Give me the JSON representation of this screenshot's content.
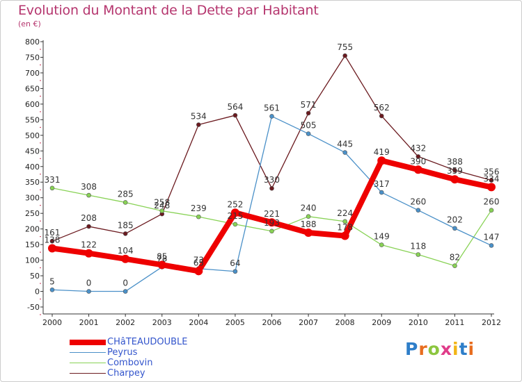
{
  "title": "Evolution du Montant de la Dette par Habitant",
  "unit_label": "(en €)",
  "logo_text": "Proxiti",
  "chart_data": {
    "type": "line",
    "title": "Evolution du Montant de la Dette par Habitant",
    "ylabel": "(en €)",
    "xlabel": "",
    "x": [
      "2000",
      "2001",
      "2002",
      "2003",
      "2004",
      "2005",
      "2006",
      "2007",
      "2008",
      "2009",
      "2010",
      "2011",
      "2012"
    ],
    "ylim": [
      -50,
      800
    ],
    "yticks": [
      -50,
      0,
      50,
      100,
      150,
      200,
      250,
      300,
      350,
      400,
      450,
      500,
      550,
      600,
      650,
      700,
      750,
      800
    ],
    "grid": false,
    "legend_position": "bottom-left",
    "series": [
      {
        "name": "CHâTEAUDOUBLE",
        "color": "#ee0000",
        "values": [
          138,
          122,
          104,
          85,
          65,
          252,
          221,
          188,
          178,
          419,
          390,
          359,
          334
        ]
      },
      {
        "name": "Peyrus",
        "color": "#4a90c8",
        "values": [
          5,
          0,
          0,
          78,
          73,
          64,
          561,
          505,
          445,
          317,
          260,
          202,
          147
        ]
      },
      {
        "name": "Combovin",
        "color": "#88d255",
        "values": [
          331,
          308,
          285,
          258,
          239,
          215,
          193,
          240,
          224,
          149,
          118,
          82,
          260
        ]
      },
      {
        "name": "Charpey",
        "color": "#6b1a1f",
        "values": [
          161,
          208,
          185,
          248,
          534,
          564,
          330,
          571,
          755,
          562,
          432,
          388,
          356
        ]
      }
    ]
  }
}
